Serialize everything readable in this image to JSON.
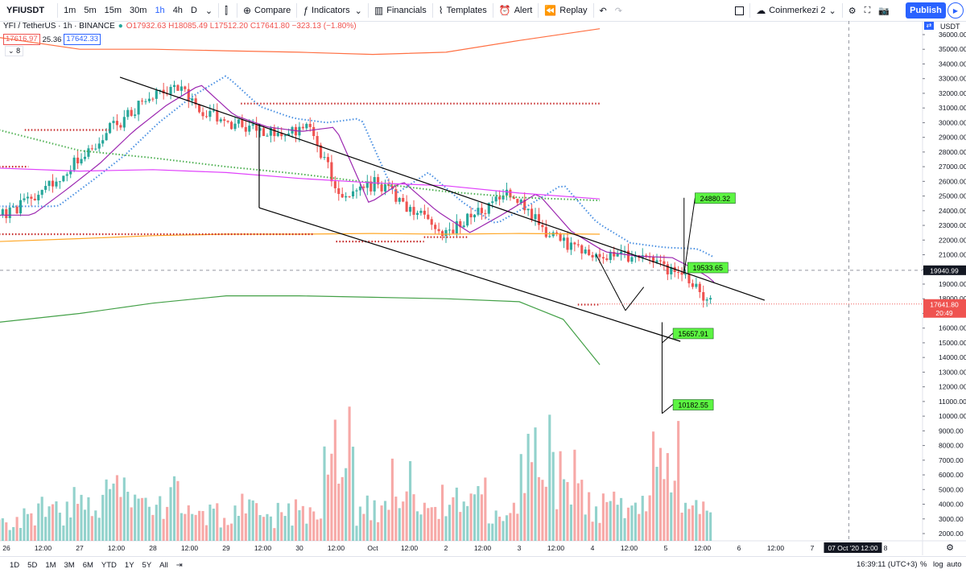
{
  "toolbar": {
    "symbol": "YFIUSDT",
    "intervals": [
      "1m",
      "5m",
      "15m",
      "30m",
      "1h",
      "4h",
      "D"
    ],
    "active_interval": "1h",
    "compare": "Compare",
    "indicators": "Indicators",
    "financials": "Financials",
    "templates": "Templates",
    "alert": "Alert",
    "replay": "Replay",
    "layout": "Coinmerkezi 2",
    "publish": "Publish"
  },
  "legend": {
    "title": "YFI / TetherUS · 1h · BINANCE",
    "ohlc": "O17932.63 H18085.49 L17512.20 C17641.80 −323.13 (−1.80%)",
    "sell": "17616.97",
    "spread": "25.36",
    "buy": "17642.33",
    "indicator_count": "8"
  },
  "price_axis": {
    "currency": "USDT",
    "ticks": [
      "36000.00",
      "35000.00",
      "34000.00",
      "33000.00",
      "32000.00",
      "31000.00",
      "30000.00",
      "29000.00",
      "28000.00",
      "27000.00",
      "26000.00",
      "25000.00",
      "24000.00",
      "23000.00",
      "22000.00",
      "21000.00",
      "20000.00",
      "19000.00",
      "18000.00",
      "17000.00",
      "16000.00",
      "15000.00",
      "14000.00",
      "13000.00",
      "12000.00",
      "11000.00",
      "10000.00",
      "9000.00",
      "8000.00",
      "7000.00",
      "6000.00",
      "5000.00",
      "4000.00",
      "3000.00",
      "2000.00"
    ],
    "crosshair_price": "19940.99",
    "last_price": "17641.80",
    "countdown": "20:49"
  },
  "time_axis": {
    "ticks": [
      "26",
      "12:00",
      "27",
      "12:00",
      "28",
      "12:00",
      "29",
      "12:00",
      "30",
      "12:00",
      "Oct",
      "12:00",
      "2",
      "12:00",
      "3",
      "12:00",
      "4",
      "12:00",
      "5",
      "12:00",
      "6",
      "12:00",
      "7",
      "12:00",
      "8"
    ],
    "crosshair_time": "07 Oct '20   12:00"
  },
  "targets": [
    "24880.32",
    "19533.65",
    "15657.91",
    "10182.55"
  ],
  "bottombar": {
    "ranges": [
      "1D",
      "5D",
      "1M",
      "3M",
      "6M",
      "YTD",
      "1Y",
      "5Y",
      "All"
    ],
    "clock": "16:39:11 (UTC+3)",
    "pct": "%",
    "log": "log",
    "auto": "auto"
  },
  "colors": {
    "up": "#26a69a",
    "down": "#ef5350",
    "publish": "#2962ff",
    "target": "#5cf542"
  },
  "chart_data": {
    "type": "candlestick",
    "series_approx_close": [
      {
        "t": "25 Sep 00:00",
        "c": 23700
      },
      {
        "t": "25 Sep 12:00",
        "c": 25400
      },
      {
        "t": "26 Sep 00:00",
        "c": 27200
      },
      {
        "t": "26 Sep 12:00",
        "c": 29400
      },
      {
        "t": "27 Sep 00:00",
        "c": 31200
      },
      {
        "t": "27 Sep 06:00",
        "c": 32600
      },
      {
        "t": "27 Sep 12:00",
        "c": 30500
      },
      {
        "t": "28 Sep 00:00",
        "c": 29700
      },
      {
        "t": "28 Sep 12:00",
        "c": 29400
      },
      {
        "t": "29 Sep 00:00",
        "c": 29700
      },
      {
        "t": "29 Sep 06:00",
        "c": 24500
      },
      {
        "t": "29 Sep 12:00",
        "c": 26000
      },
      {
        "t": "30 Sep 00:00",
        "c": 24000
      },
      {
        "t": "30 Sep 12:00",
        "c": 22500
      },
      {
        "t": "1 Oct 00:00",
        "c": 23800
      },
      {
        "t": "1 Oct 12:00",
        "c": 25200
      },
      {
        "t": "2 Oct 00:00",
        "c": 22600
      },
      {
        "t": "2 Oct 12:00",
        "c": 21200
      },
      {
        "t": "3 Oct 00:00",
        "c": 20900
      },
      {
        "t": "3 Oct 12:00",
        "c": 20800
      },
      {
        "t": "4 Oct 00:00",
        "c": 19600
      },
      {
        "t": "4 Oct 12:00",
        "c": 17642
      }
    ],
    "volume_approx": [
      2400,
      3300,
      4200,
      5000,
      3600,
      4800,
      2800,
      3500,
      2800,
      3400,
      10300,
      3400,
      6000,
      4800,
      4600,
      3000,
      9200,
      6800,
      3600,
      3300,
      8800,
      3200
    ],
    "ylim": [
      1600,
      36800
    ],
    "volume_max": 10400
  }
}
